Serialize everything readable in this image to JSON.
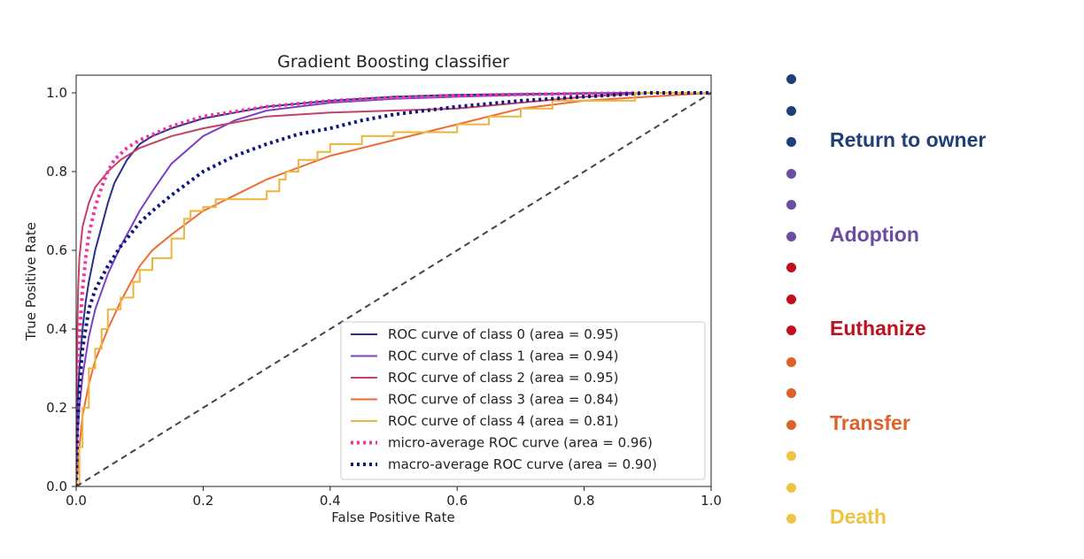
{
  "chart_data": {
    "type": "line",
    "title": "Gradient Boosting classifier",
    "xlabel": "False Positive Rate",
    "ylabel": "True Positive Rate",
    "xlim": [
      0.0,
      1.0
    ],
    "ylim": [
      0.0,
      1.0
    ],
    "xticks": [
      "0.0",
      "0.2",
      "0.4",
      "0.6",
      "0.8",
      "1.0"
    ],
    "yticks": [
      "0.0",
      "0.2",
      "0.4",
      "0.6",
      "0.8",
      "1.0"
    ],
    "grid": false,
    "legend_position": "bottom-right",
    "series": [
      {
        "name": "ROC curve of class 0 (area = 0.95)",
        "color": "#2a2f8a",
        "style": "solid",
        "x": [
          0,
          0.002,
          0.005,
          0.01,
          0.015,
          0.02,
          0.03,
          0.04,
          0.05,
          0.06,
          0.08,
          0.1,
          0.12,
          0.15,
          0.2,
          0.25,
          0.3,
          0.4,
          0.5,
          0.6,
          0.7,
          0.8,
          0.9,
          1.0
        ],
        "y": [
          0,
          0.2,
          0.3,
          0.4,
          0.47,
          0.52,
          0.6,
          0.66,
          0.72,
          0.77,
          0.83,
          0.87,
          0.89,
          0.91,
          0.935,
          0.95,
          0.965,
          0.98,
          0.99,
          0.995,
          0.997,
          0.999,
          1.0,
          1.0
        ]
      },
      {
        "name": "ROC curve of class 1 (area = 0.94)",
        "color": "#7b3fc4",
        "style": "solid",
        "x": [
          0,
          0.002,
          0.005,
          0.01,
          0.02,
          0.03,
          0.05,
          0.07,
          0.1,
          0.12,
          0.15,
          0.2,
          0.25,
          0.3,
          0.4,
          0.5,
          0.6,
          0.7,
          0.8,
          0.9,
          1.0
        ],
        "y": [
          0,
          0.12,
          0.2,
          0.28,
          0.38,
          0.45,
          0.54,
          0.61,
          0.7,
          0.75,
          0.82,
          0.89,
          0.93,
          0.955,
          0.975,
          0.985,
          0.99,
          0.995,
          0.998,
          1.0,
          1.0
        ]
      },
      {
        "name": "ROC curve of class 2 (area = 0.95)",
        "color": "#c24367",
        "style": "solid",
        "x": [
          0,
          0.001,
          0.003,
          0.005,
          0.01,
          0.02,
          0.03,
          0.05,
          0.07,
          0.1,
          0.15,
          0.2,
          0.25,
          0.3,
          0.35,
          0.4,
          0.5,
          0.6,
          0.7,
          0.8,
          0.9,
          1.0
        ],
        "y": [
          0,
          0.3,
          0.5,
          0.58,
          0.66,
          0.72,
          0.76,
          0.8,
          0.83,
          0.86,
          0.89,
          0.91,
          0.925,
          0.94,
          0.945,
          0.95,
          0.955,
          0.96,
          0.975,
          0.99,
          1.0,
          1.0
        ]
      },
      {
        "name": "ROC curve of class 3 (area = 0.84)",
        "color": "#f06a34",
        "style": "solid",
        "x": [
          0,
          0.005,
          0.01,
          0.02,
          0.03,
          0.05,
          0.07,
          0.1,
          0.12,
          0.15,
          0.2,
          0.25,
          0.3,
          0.35,
          0.4,
          0.45,
          0.5,
          0.55,
          0.6,
          0.65,
          0.7,
          0.75,
          0.8,
          0.9,
          1.0
        ],
        "y": [
          0,
          0.1,
          0.18,
          0.26,
          0.32,
          0.4,
          0.47,
          0.56,
          0.6,
          0.64,
          0.7,
          0.74,
          0.78,
          0.81,
          0.84,
          0.86,
          0.88,
          0.9,
          0.92,
          0.94,
          0.96,
          0.97,
          0.98,
          0.99,
          1.0
        ]
      },
      {
        "name": "ROC curve of class 4 (area = 0.81)",
        "color": "#ecb53b",
        "style": "step",
        "x": [
          0,
          0.005,
          0.01,
          0.02,
          0.03,
          0.04,
          0.05,
          0.07,
          0.09,
          0.1,
          0.12,
          0.15,
          0.17,
          0.18,
          0.2,
          0.22,
          0.3,
          0.32,
          0.33,
          0.35,
          0.38,
          0.4,
          0.45,
          0.5,
          0.6,
          0.65,
          0.7,
          0.75,
          0.88,
          0.88,
          1.0
        ],
        "y": [
          0,
          0.1,
          0.2,
          0.3,
          0.35,
          0.4,
          0.45,
          0.48,
          0.52,
          0.55,
          0.58,
          0.63,
          0.68,
          0.7,
          0.71,
          0.73,
          0.75,
          0.78,
          0.8,
          0.83,
          0.85,
          0.87,
          0.89,
          0.9,
          0.92,
          0.94,
          0.96,
          0.98,
          0.98,
          1.0,
          1.0
        ]
      },
      {
        "name": "micro-average ROC curve (area = 0.96)",
        "color": "#f0359c",
        "style": "dotted",
        "x": [
          0,
          0.002,
          0.005,
          0.01,
          0.015,
          0.02,
          0.03,
          0.04,
          0.05,
          0.06,
          0.08,
          0.1,
          0.15,
          0.2,
          0.3,
          0.4,
          0.5,
          0.6,
          0.7,
          0.8,
          0.9,
          1.0
        ],
        "y": [
          0,
          0.22,
          0.38,
          0.5,
          0.58,
          0.64,
          0.71,
          0.76,
          0.8,
          0.83,
          0.86,
          0.88,
          0.915,
          0.94,
          0.965,
          0.98,
          0.988,
          0.993,
          0.996,
          0.998,
          1.0,
          1.0
        ]
      },
      {
        "name": "macro-average ROC curve (area = 0.90)",
        "color": "#0d1780",
        "style": "dotted",
        "x": [
          0,
          0.002,
          0.005,
          0.01,
          0.02,
          0.03,
          0.05,
          0.07,
          0.1,
          0.12,
          0.15,
          0.2,
          0.25,
          0.3,
          0.35,
          0.4,
          0.45,
          0.5,
          0.55,
          0.6,
          0.7,
          0.8,
          0.9,
          1.0
        ],
        "y": [
          0,
          0.15,
          0.25,
          0.35,
          0.45,
          0.5,
          0.56,
          0.61,
          0.67,
          0.7,
          0.74,
          0.8,
          0.84,
          0.87,
          0.895,
          0.91,
          0.93,
          0.945,
          0.955,
          0.965,
          0.98,
          0.99,
          1.0,
          1.0
        ]
      },
      {
        "name": "",
        "color": "#444444",
        "style": "dashed",
        "x": [
          0,
          1
        ],
        "y": [
          0,
          1
        ]
      }
    ]
  },
  "side_legend": [
    {
      "label": "",
      "color": "#1e3f7a"
    },
    {
      "label": "",
      "color": "#1e3f7a"
    },
    {
      "label": "Return to owner",
      "color": "#1e3f7a"
    },
    {
      "label": "",
      "color": "#6a4ca4"
    },
    {
      "label": "",
      "color": "#6a4ca4"
    },
    {
      "label": "Adoption",
      "color": "#6a4ca4"
    },
    {
      "label": "",
      "color": "#c0101e"
    },
    {
      "label": "",
      "color": "#c0101e"
    },
    {
      "label": "Euthanize",
      "color": "#c0101e"
    },
    {
      "label": "",
      "color": "#e0602a"
    },
    {
      "label": "",
      "color": "#e0602a"
    },
    {
      "label": "Transfer",
      "color": "#e0602a"
    },
    {
      "label": "",
      "color": "#efc343"
    },
    {
      "label": "",
      "color": "#efc343"
    },
    {
      "label": "Death",
      "color": "#efc343"
    }
  ]
}
